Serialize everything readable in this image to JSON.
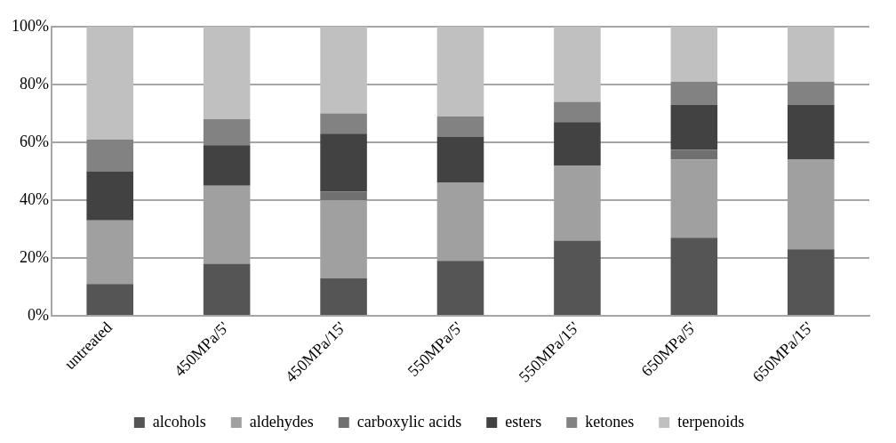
{
  "chart_data": {
    "type": "bar",
    "stacked": true,
    "categories": [
      "untreated",
      "450MPa/5'",
      "450MPa/15'",
      "550MPa/5'",
      "550MPa/15'",
      "650MPa/5'",
      "650MPa/15'"
    ],
    "series": [
      {
        "name": "alcohols",
        "color": "#555555",
        "values": [
          11,
          18,
          13,
          19,
          26,
          27,
          23
        ]
      },
      {
        "name": "aldehydes",
        "color": "#a0a0a0",
        "values": [
          22,
          27,
          27,
          27,
          26,
          27,
          31
        ]
      },
      {
        "name": "carboxylic acids",
        "color": "#707070",
        "values": [
          0,
          0,
          3,
          0,
          0,
          3.5,
          0
        ]
      },
      {
        "name": "esters",
        "color": "#424242",
        "values": [
          17,
          14,
          20,
          16,
          15,
          15.5,
          19
        ]
      },
      {
        "name": "ketones",
        "color": "#828282",
        "values": [
          11,
          9,
          7,
          7,
          7,
          8,
          8
        ]
      },
      {
        "name": "terpenoids",
        "color": "#c0c0c0",
        "values": [
          39,
          32,
          30,
          31,
          26,
          19,
          19
        ]
      }
    ],
    "ylim": [
      0,
      100
    ],
    "yticks": [
      {
        "value": 0,
        "label": "0%"
      },
      {
        "value": 20,
        "label": "20%"
      },
      {
        "value": 40,
        "label": "40%"
      },
      {
        "value": 60,
        "label": "60%"
      },
      {
        "value": 80,
        "label": "80%"
      },
      {
        "value": 100,
        "label": "100%"
      }
    ],
    "grid": "y",
    "legend": "bottom"
  }
}
